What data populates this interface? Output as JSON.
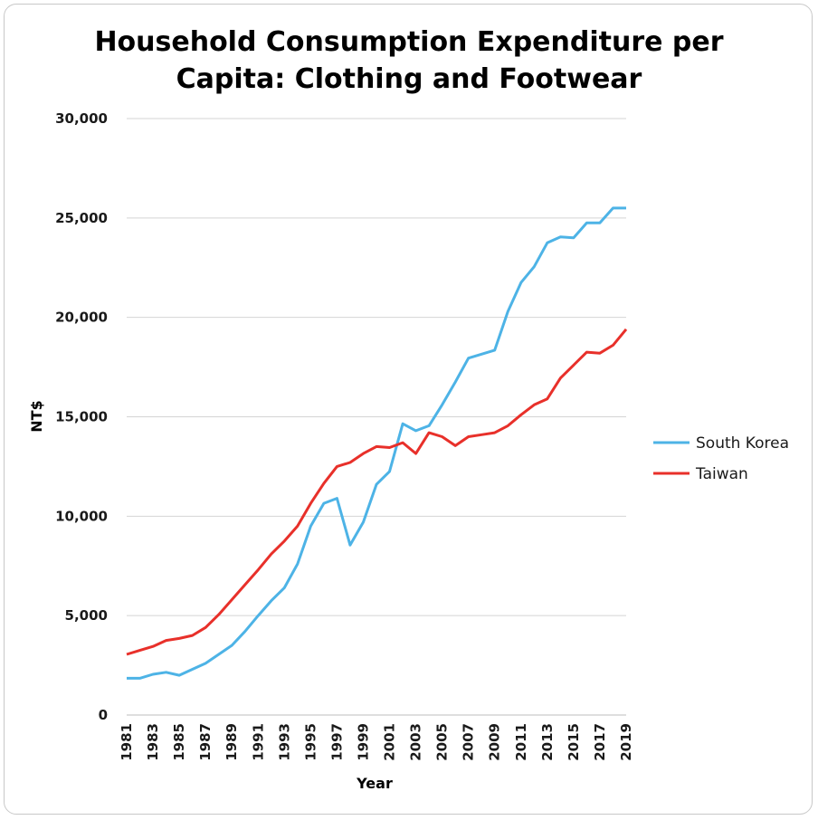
{
  "chart_data": {
    "type": "line",
    "title_lines": [
      "Household Consumption Expenditure per",
      "Capita: Clothing and Footwear"
    ],
    "xlabel": "Year",
    "ylabel": "NT$",
    "ylim": [
      0,
      30000
    ],
    "yticks": [
      0,
      5000,
      10000,
      15000,
      20000,
      25000,
      30000
    ],
    "ytick_labels": [
      "0",
      "5,000",
      "10,000",
      "15,000",
      "20,000",
      "25,000",
      "30,000"
    ],
    "x": [
      1981,
      1982,
      1983,
      1984,
      1985,
      1986,
      1987,
      1988,
      1989,
      1990,
      1991,
      1992,
      1993,
      1994,
      1995,
      1996,
      1997,
      1998,
      1999,
      2000,
      2001,
      2002,
      2003,
      2004,
      2005,
      2006,
      2007,
      2008,
      2009,
      2010,
      2011,
      2012,
      2013,
      2014,
      2015,
      2016,
      2017,
      2018,
      2019
    ],
    "xtick_labels": [
      "1981",
      "1983",
      "1985",
      "1987",
      "1989",
      "1991",
      "1993",
      "1995",
      "1997",
      "1999",
      "2001",
      "2003",
      "2005",
      "2007",
      "2009",
      "2011",
      "2013",
      "2015",
      "2017",
      "2019"
    ],
    "grid": true,
    "legend_position": "right",
    "series": [
      {
        "name": "South Korea",
        "color": "#4db3e6",
        "values": [
          1850,
          1850,
          2050,
          2150,
          2000,
          2300,
          2600,
          3050,
          3500,
          4200,
          5000,
          5750,
          6400,
          7600,
          9500,
          10650,
          10900,
          8550,
          9700,
          11600,
          12250,
          14650,
          14300,
          14550,
          15600,
          16750,
          17950,
          18150,
          18350,
          20300,
          21750,
          22550,
          23750,
          24050,
          24000,
          24750,
          24750,
          25500,
          25500
        ]
      },
      {
        "name": "Taiwan",
        "color": "#e8302a",
        "values": [
          3050,
          3250,
          3450,
          3750,
          3850,
          4000,
          4400,
          5050,
          5800,
          6550,
          7300,
          8100,
          8750,
          9500,
          10650,
          11650,
          12500,
          12700,
          13150,
          13500,
          13450,
          13700,
          13150,
          14200,
          14000,
          13550,
          14000,
          14100,
          14200,
          14550,
          15100,
          15600,
          15900,
          16950,
          17600,
          18250,
          18200,
          18600,
          19400
        ]
      }
    ]
  }
}
